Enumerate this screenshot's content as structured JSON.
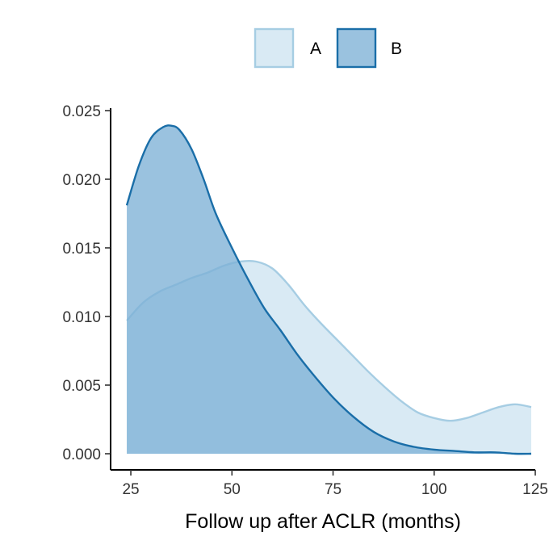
{
  "chart_data": {
    "type": "area",
    "xlabel": "Follow up after ACLR (months)",
    "ylabel": "",
    "xlim": [
      20,
      125
    ],
    "ylim": [
      0,
      0.025
    ],
    "x_ticks": [
      25,
      50,
      75,
      100,
      125
    ],
    "y_ticks": [
      0.0,
      0.005,
      0.01,
      0.015,
      0.02,
      0.025
    ],
    "x_tick_labels": [
      "25",
      "50",
      "75",
      "100",
      "125"
    ],
    "y_tick_labels": [
      "0.000",
      "0.005",
      "0.010",
      "0.015",
      "0.020",
      "0.025"
    ],
    "grid": false,
    "legend": {
      "position": "top",
      "entries": [
        "A",
        "B"
      ]
    },
    "series": [
      {
        "name": "A",
        "fill": "#d9eaf4",
        "stroke": "#a6cde3",
        "x": [
          24,
          28,
          32,
          36,
          40,
          44,
          48,
          52,
          56,
          60,
          64,
          68,
          72,
          76,
          80,
          84,
          88,
          92,
          96,
          100,
          104,
          108,
          112,
          116,
          120,
          124
        ],
        "y": [
          0.0097,
          0.011,
          0.0118,
          0.0123,
          0.0128,
          0.0132,
          0.0137,
          0.014,
          0.014,
          0.0135,
          0.0123,
          0.0108,
          0.0095,
          0.0083,
          0.0071,
          0.0059,
          0.0048,
          0.0038,
          0.003,
          0.0026,
          0.0024,
          0.0026,
          0.003,
          0.0034,
          0.0036,
          0.0034
        ]
      },
      {
        "name": "B",
        "fill": "#7eb1d6",
        "stroke": "#1a6ea8",
        "x": [
          24,
          27,
          30,
          33,
          35,
          37,
          40,
          43,
          46,
          50,
          54,
          58,
          62,
          66,
          70,
          75,
          80,
          85,
          90,
          95,
          100,
          105,
          110,
          115,
          120,
          124
        ],
        "y": [
          0.0181,
          0.021,
          0.023,
          0.0238,
          0.0239,
          0.0236,
          0.0222,
          0.02,
          0.0175,
          0.015,
          0.0127,
          0.0106,
          0.009,
          0.0073,
          0.0058,
          0.0041,
          0.0027,
          0.0016,
          0.0009,
          0.0005,
          0.0003,
          0.0002,
          0.0001,
          0.0001,
          0.0,
          0.0
        ]
      }
    ]
  }
}
